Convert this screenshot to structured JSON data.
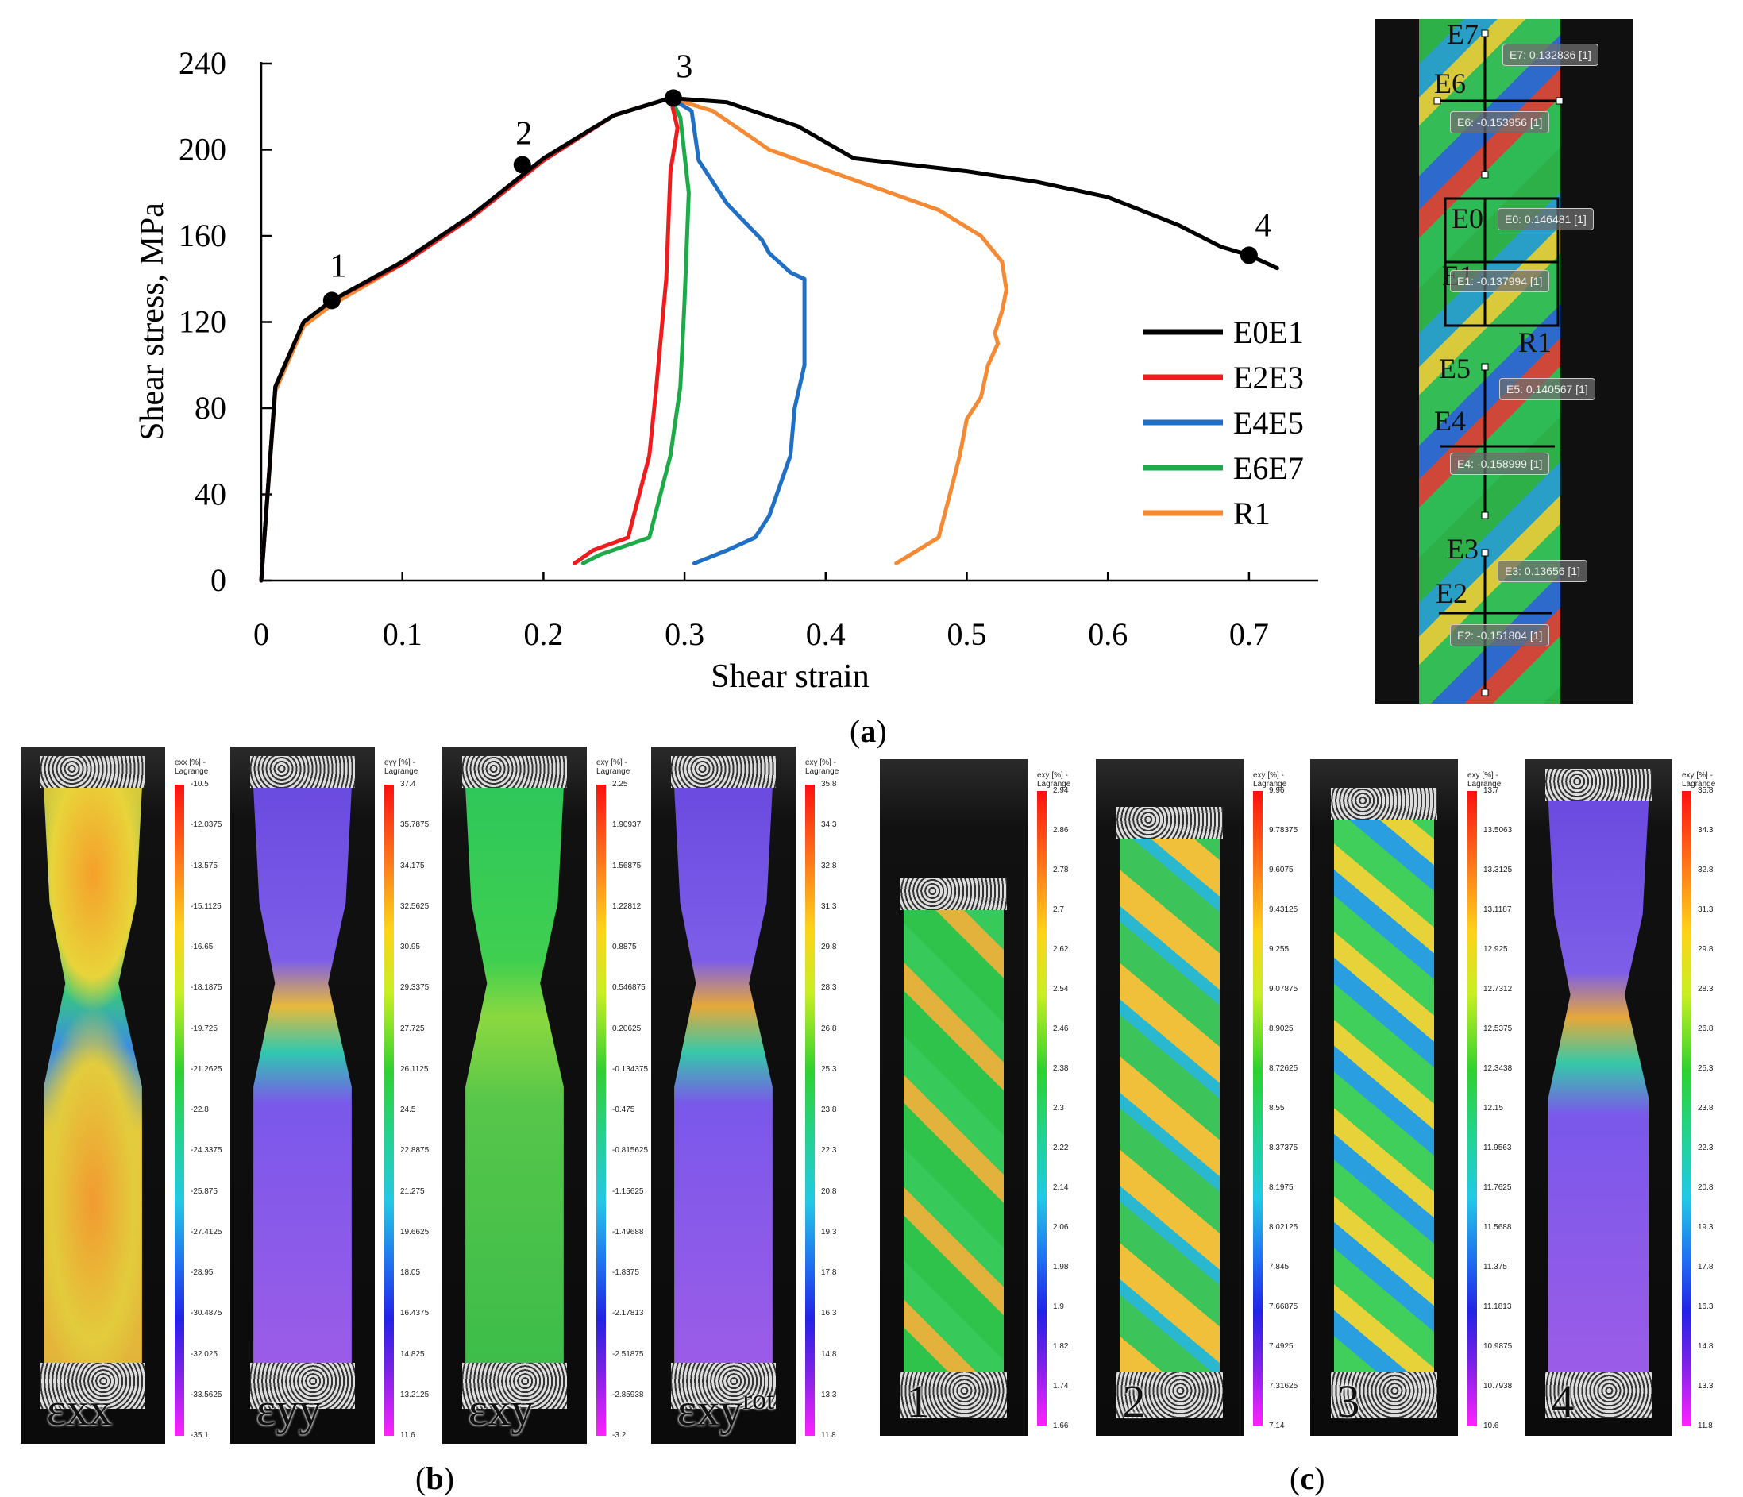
{
  "chart_data": {
    "type": "line",
    "xlabel": "Shear strain",
    "ylabel": "Shear stress, MPa",
    "xlim": [
      0,
      0.75
    ],
    "ylim": [
      0,
      240
    ],
    "xticks": [
      "0",
      "0.1",
      "0.2",
      "0.3",
      "0.4",
      "0.5",
      "0.6",
      "0.7"
    ],
    "yticks": [
      "0",
      "40",
      "80",
      "120",
      "160",
      "200",
      "240"
    ],
    "legend": "right",
    "series": [
      {
        "name": "E0E1",
        "color": "#000000",
        "x": [
          0,
          0.01,
          0.03,
          0.05,
          0.1,
          0.15,
          0.2,
          0.25,
          0.29,
          0.33,
          0.38,
          0.42,
          0.5,
          0.55,
          0.6,
          0.65,
          0.68,
          0.7,
          0.72
        ],
        "y": [
          0,
          90,
          120,
          130,
          148,
          170,
          196,
          216,
          224,
          222,
          211,
          196,
          190,
          185,
          178,
          165,
          155,
          151,
          145
        ]
      },
      {
        "name": "E2E3",
        "color": "#ee1c1c",
        "x": [
          0,
          0.01,
          0.03,
          0.05,
          0.1,
          0.15,
          0.2,
          0.25,
          0.29,
          0.295,
          0.29,
          0.287,
          0.28,
          0.275,
          0.26,
          0.235,
          0.222
        ],
        "y": [
          0,
          90,
          120,
          130,
          147,
          169,
          195,
          216,
          224,
          210,
          190,
          140,
          90,
          58,
          20,
          14,
          8
        ]
      },
      {
        "name": "E4E5",
        "color": "#1f6fc4",
        "x": [
          0,
          0.01,
          0.03,
          0.05,
          0.1,
          0.15,
          0.2,
          0.25,
          0.29,
          0.305,
          0.31,
          0.33,
          0.355,
          0.36,
          0.375,
          0.385,
          0.385,
          0.378,
          0.375,
          0.36,
          0.35,
          0.33,
          0.307
        ],
        "y": [
          0,
          90,
          120,
          130,
          147,
          169,
          195,
          216,
          224,
          218,
          195,
          175,
          158,
          152,
          143,
          140,
          100,
          80,
          58,
          30,
          20,
          14,
          8
        ]
      },
      {
        "name": "E6E7",
        "color": "#1eaa48",
        "x": [
          0,
          0.01,
          0.03,
          0.05,
          0.1,
          0.15,
          0.2,
          0.25,
          0.29,
          0.297,
          0.303,
          0.3,
          0.297,
          0.29,
          0.275,
          0.24,
          0.228
        ],
        "y": [
          0,
          90,
          120,
          130,
          147,
          169,
          195,
          216,
          224,
          215,
          180,
          130,
          90,
          58,
          20,
          12,
          8
        ]
      },
      {
        "name": "R1",
        "color": "#f58a35",
        "x": [
          0,
          0.01,
          0.03,
          0.05,
          0.1,
          0.15,
          0.2,
          0.25,
          0.29,
          0.32,
          0.36,
          0.42,
          0.48,
          0.51,
          0.525,
          0.528,
          0.525,
          0.52,
          0.522,
          0.515,
          0.51,
          0.5,
          0.495,
          0.49,
          0.48,
          0.45
        ],
        "y": [
          0,
          88,
          118,
          128,
          147,
          169,
          195,
          216,
          224,
          218,
          200,
          186,
          172,
          160,
          148,
          135,
          125,
          115,
          110,
          100,
          85,
          75,
          58,
          45,
          20,
          8
        ]
      }
    ],
    "points": [
      {
        "label": "1",
        "x": 0.05,
        "y": 130
      },
      {
        "label": "2",
        "x": 0.185,
        "y": 193
      },
      {
        "label": "3",
        "x": 0.292,
        "y": 224
      },
      {
        "label": "4",
        "x": 0.7,
        "y": 151
      }
    ]
  },
  "captions": {
    "a": "(a)",
    "b": "(b)",
    "c": "(c)"
  },
  "caption_letters": {
    "a": "a",
    "b": "b",
    "c": "c"
  },
  "dic": {
    "labels": [
      "E7",
      "E6",
      "E0",
      "E1",
      "R1",
      "E5",
      "E4",
      "E3",
      "E2"
    ],
    "boxes": [
      "E7: 0.132836 [1]",
      "E6: -0.153956 [1]",
      "E0: 0.146481 [1]",
      "E1: -0.137994 [1]",
      "E5: 0.140567 [1]",
      "E4: -0.158999 [1]",
      "E3: 0.13656 [1]",
      "E2: -0.151804 [1]"
    ]
  },
  "panels_b": [
    {
      "title": "exx [%] - Lagrange",
      "symbol": "εxx",
      "ticks": [
        "-10.5",
        "-12.0375",
        "-13.575",
        "-15.1125",
        "-16.65",
        "-18.1875",
        "-19.725",
        "-21.2625",
        "-22.8",
        "-24.3375",
        "-25.875",
        "-27.4125",
        "-28.95",
        "-30.4875",
        "-32.025",
        "-33.5625",
        "-35.1"
      ]
    },
    {
      "title": "eyy [%] - Lagrange",
      "symbol": "εyy",
      "ticks": [
        "37.4",
        "35.7875",
        "34.175",
        "32.5625",
        "30.95",
        "29.3375",
        "27.725",
        "26.1125",
        "24.5",
        "22.8875",
        "21.275",
        "19.6625",
        "18.05",
        "16.4375",
        "14.825",
        "13.2125",
        "11.6"
      ]
    },
    {
      "title": "exy [%] - Lagrange",
      "symbol": "εxy",
      "ticks": [
        "2.25",
        "1.90937",
        "1.56875",
        "1.22812",
        "0.8875",
        "0.546875",
        "0.20625",
        "-0.134375",
        "-0.475",
        "-0.815625",
        "-1.15625",
        "-1.49688",
        "-1.8375",
        "-2.17813",
        "-2.51875",
        "-2.85938",
        "-3.2"
      ]
    },
    {
      "title": "exy [%] - Lagrange",
      "symbol": "εxy",
      "sup": "rot",
      "ticks": [
        "35.8",
        "34.3",
        "32.8",
        "31.3",
        "29.8",
        "28.3",
        "26.8",
        "25.3",
        "23.8",
        "22.3",
        "20.8",
        "19.3",
        "17.8",
        "16.3",
        "14.8",
        "13.3",
        "11.8"
      ]
    }
  ],
  "panels_c": [
    {
      "title": "exy [%] - Lagrange",
      "symbol": "1",
      "ticks": [
        "2.94",
        "2.86",
        "2.78",
        "2.7",
        "2.62",
        "2.54",
        "2.46",
        "2.38",
        "2.3",
        "2.22",
        "2.14",
        "2.06",
        "1.98",
        "1.9",
        "1.82",
        "1.74",
        "1.66"
      ]
    },
    {
      "title": "exy [%] - Lagrange",
      "symbol": "2",
      "ticks": [
        "9.96",
        "9.78375",
        "9.6075",
        "9.43125",
        "9.255",
        "9.07875",
        "8.9025",
        "8.72625",
        "8.55",
        "8.37375",
        "8.1975",
        "8.02125",
        "7.845",
        "7.66875",
        "7.4925",
        "7.31625",
        "7.14"
      ]
    },
    {
      "title": "exy [%] - Lagrange",
      "symbol": "3",
      "ticks": [
        "13.7",
        "13.5063",
        "13.3125",
        "13.1187",
        "12.925",
        "12.7312",
        "12.5375",
        "12.3438",
        "12.15",
        "11.9563",
        "11.7625",
        "11.5688",
        "11.375",
        "11.1813",
        "10.9875",
        "10.7938",
        "10.6"
      ]
    },
    {
      "title": "exy [%] - Lagrange",
      "symbol": "4",
      "ticks": [
        "35.8",
        "34.3",
        "32.8",
        "31.3",
        "29.8",
        "28.3",
        "26.8",
        "25.3",
        "23.8",
        "22.3",
        "20.8",
        "19.3",
        "17.8",
        "16.3",
        "14.8",
        "13.3",
        "11.8"
      ]
    }
  ]
}
